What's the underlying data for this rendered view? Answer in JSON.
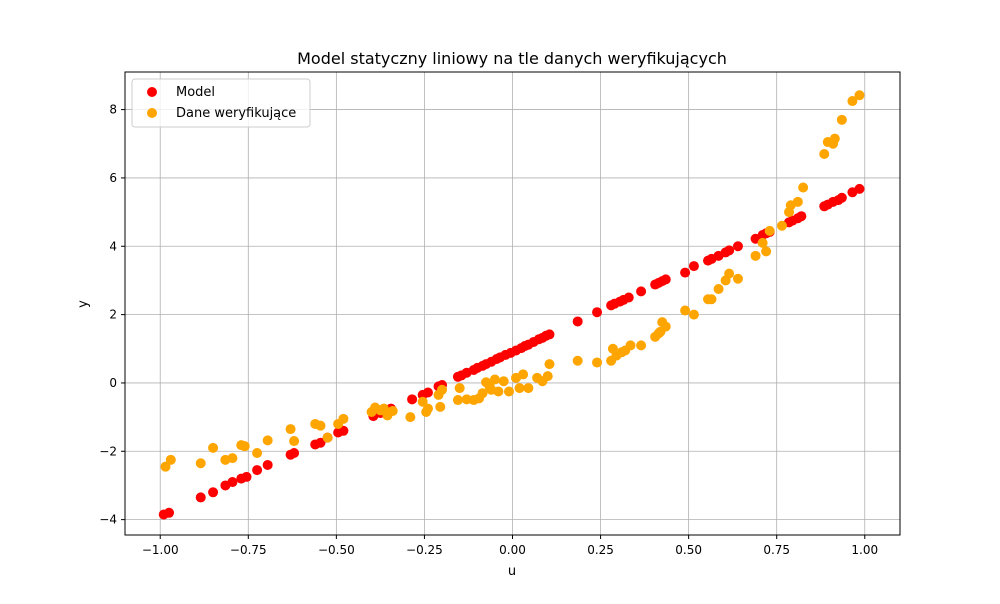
{
  "chart_data": {
    "type": "scatter",
    "title": "Model statyczny liniowy na tle danych weryfikujących",
    "xlabel": "u",
    "ylabel": "y",
    "xlim": [
      -1.1,
      1.1
    ],
    "ylim": [
      -4.45,
      9.1
    ],
    "xticks": [
      -1.0,
      -0.75,
      -0.5,
      -0.25,
      0.0,
      0.25,
      0.5,
      0.75,
      1.0
    ],
    "xtick_labels": [
      "−1.00",
      "−0.75",
      "−0.50",
      "−0.25",
      "0.00",
      "0.25",
      "0.50",
      "0.75",
      "1.00"
    ],
    "yticks": [
      -4,
      -2,
      0,
      2,
      4,
      6,
      8
    ],
    "ytick_labels": [
      "−4",
      "−2",
      "0",
      "2",
      "4",
      "6",
      "8"
    ],
    "grid": true,
    "legend_position": "top-left",
    "series": [
      {
        "name": "Model",
        "color": "#ff0000",
        "x": [
          -0.99,
          -0.975,
          -0.885,
          -0.85,
          -0.815,
          -0.795,
          -0.77,
          -0.755,
          -0.725,
          -0.695,
          -0.63,
          -0.62,
          -0.56,
          -0.545,
          -0.525,
          -0.495,
          -0.48,
          -0.395,
          -0.375,
          -0.355,
          -0.345,
          -0.285,
          -0.255,
          -0.24,
          -0.21,
          -0.2,
          -0.155,
          -0.145,
          -0.13,
          -0.11,
          -0.1,
          -0.085,
          -0.075,
          -0.06,
          -0.045,
          -0.035,
          -0.02,
          -0.005,
          0.01,
          0.025,
          0.035,
          0.045,
          0.06,
          0.075,
          0.085,
          0.095,
          0.105,
          0.185,
          0.24,
          0.28,
          0.29,
          0.305,
          0.315,
          0.33,
          0.365,
          0.405,
          0.415,
          0.425,
          0.435,
          0.49,
          0.515,
          0.555,
          0.565,
          0.585,
          0.605,
          0.615,
          0.64,
          0.69,
          0.71,
          0.72,
          0.73,
          0.785,
          0.795,
          0.81,
          0.82,
          0.885,
          0.895,
          0.91,
          0.925,
          0.935,
          0.965,
          0.985
        ],
        "y": [
          -3.85,
          -3.8,
          -3.35,
          -3.2,
          -3.0,
          -2.9,
          -2.8,
          -2.75,
          -2.55,
          -2.4,
          -2.1,
          -2.05,
          -1.8,
          -1.75,
          -1.6,
          -1.45,
          -1.4,
          -0.97,
          -0.88,
          -0.8,
          -0.75,
          -0.48,
          -0.35,
          -0.28,
          -0.1,
          -0.06,
          0.18,
          0.22,
          0.3,
          0.38,
          0.44,
          0.5,
          0.55,
          0.62,
          0.7,
          0.75,
          0.82,
          0.88,
          0.95,
          1.02,
          1.08,
          1.12,
          1.2,
          1.28,
          1.32,
          1.38,
          1.42,
          1.8,
          2.07,
          2.27,
          2.32,
          2.38,
          2.43,
          2.5,
          2.68,
          2.88,
          2.93,
          2.98,
          3.03,
          3.23,
          3.42,
          3.58,
          3.63,
          3.72,
          3.82,
          3.88,
          4.0,
          4.22,
          4.33,
          4.38,
          4.42,
          4.7,
          4.75,
          4.82,
          4.88,
          5.17,
          5.22,
          5.3,
          5.35,
          5.42,
          5.58,
          5.68
        ]
      },
      {
        "name": "Dane weryfikujące",
        "color": "#ffa500",
        "x": [
          -0.985,
          -0.97,
          -0.885,
          -0.85,
          -0.815,
          -0.795,
          -0.77,
          -0.76,
          -0.725,
          -0.695,
          -0.63,
          -0.62,
          -0.56,
          -0.545,
          -0.525,
          -0.495,
          -0.48,
          -0.4,
          -0.39,
          -0.375,
          -0.365,
          -0.355,
          -0.34,
          -0.29,
          -0.255,
          -0.245,
          -0.24,
          -0.21,
          -0.205,
          -0.2,
          -0.155,
          -0.15,
          -0.13,
          -0.11,
          -0.095,
          -0.085,
          -0.075,
          -0.065,
          -0.06,
          -0.05,
          -0.04,
          -0.025,
          -0.01,
          0.01,
          0.02,
          0.03,
          0.045,
          0.07,
          0.085,
          0.1,
          0.105,
          0.185,
          0.24,
          0.28,
          0.285,
          0.295,
          0.31,
          0.32,
          0.335,
          0.365,
          0.405,
          0.415,
          0.42,
          0.425,
          0.435,
          0.49,
          0.515,
          0.555,
          0.565,
          0.585,
          0.605,
          0.615,
          0.64,
          0.69,
          0.71,
          0.72,
          0.73,
          0.765,
          0.785,
          0.79,
          0.81,
          0.825,
          0.885,
          0.895,
          0.91,
          0.915,
          0.935,
          0.965,
          0.985
        ],
        "y": [
          -2.45,
          -2.25,
          -2.35,
          -1.9,
          -2.25,
          -2.2,
          -1.82,
          -1.85,
          -2.05,
          -1.68,
          -1.35,
          -1.7,
          -1.2,
          -1.25,
          -1.6,
          -1.2,
          -1.05,
          -0.85,
          -0.72,
          -0.8,
          -0.75,
          -0.95,
          -0.82,
          -1.0,
          -0.55,
          -0.85,
          -0.75,
          -0.35,
          -0.7,
          -0.2,
          -0.5,
          -0.15,
          -0.48,
          -0.5,
          -0.45,
          -0.3,
          0.02,
          -0.1,
          -0.2,
          0.1,
          -0.25,
          0.05,
          -0.25,
          0.15,
          -0.15,
          0.25,
          -0.15,
          0.15,
          0.05,
          0.2,
          0.55,
          0.65,
          0.6,
          0.65,
          1.0,
          0.8,
          0.9,
          0.95,
          1.1,
          1.1,
          1.35,
          1.45,
          1.5,
          1.78,
          1.65,
          2.12,
          2.0,
          2.45,
          2.45,
          2.75,
          3.0,
          3.2,
          3.05,
          3.72,
          4.1,
          3.85,
          4.45,
          4.6,
          5.0,
          5.2,
          5.3,
          5.72,
          6.7,
          7.05,
          7.0,
          7.15,
          7.7,
          8.25,
          8.42
        ]
      }
    ]
  }
}
